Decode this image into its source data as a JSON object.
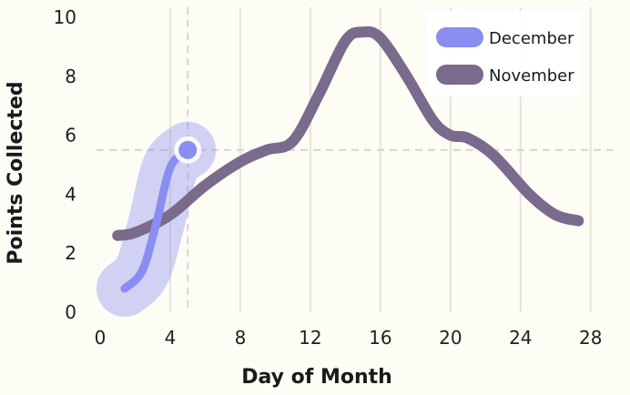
{
  "chart_data": {
    "type": "line",
    "xlabel": "Day of Month",
    "ylabel": "Points Collected",
    "xlim": [
      0,
      29
    ],
    "ylim": [
      0,
      10
    ],
    "x_ticks": [
      "0",
      "4",
      "8",
      "12",
      "16",
      "20",
      "24",
      "28"
    ],
    "y_ticks": [
      "0",
      "2",
      "4",
      "6",
      "8",
      "10"
    ],
    "grid": "vertical",
    "legend_position": "top-right",
    "series": [
      {
        "name": "December",
        "color": "#8a8ef0",
        "x": [
          1.4,
          2.4,
          3.2,
          4.0,
          5.0
        ],
        "y": [
          0.8,
          1.4,
          3.0,
          4.9,
          5.5
        ]
      },
      {
        "name": "November",
        "color": "#7a6a8c",
        "x": [
          1,
          2,
          4,
          6,
          8,
          9.5,
          11,
          12.5,
          14,
          15,
          16,
          17.5,
          19,
          20,
          21,
          22.5,
          24.5,
          26,
          27.3
        ],
        "y": [
          2.6,
          2.7,
          3.3,
          4.3,
          5.1,
          5.5,
          5.8,
          7.4,
          9.2,
          9.5,
          9.3,
          8.0,
          6.5,
          6.0,
          5.9,
          5.3,
          4.0,
          3.3,
          3.1
        ]
      }
    ],
    "highlight": {
      "series": "December",
      "x": 5,
      "y": 5.5
    }
  }
}
